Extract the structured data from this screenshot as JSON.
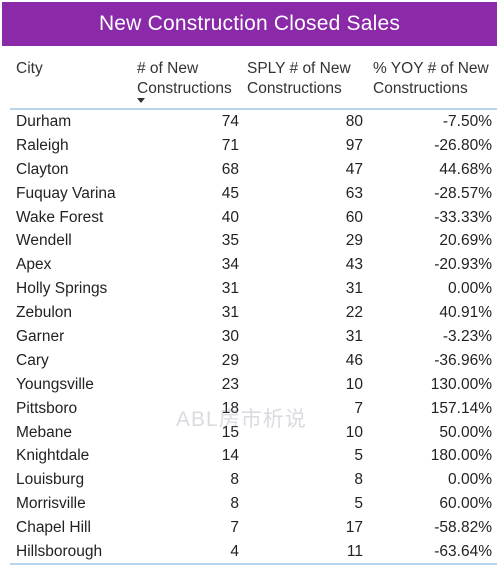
{
  "title": "New Construction Closed Sales",
  "watermark": "ABL房市析说",
  "columns": {
    "city": "City",
    "new": "# of New Constructions",
    "sply": "SPLY # of New Constructions",
    "yoy": "% YOY # of New Constructions"
  },
  "chart_data": {
    "type": "table",
    "title": "New Construction Closed Sales",
    "columns": [
      "City",
      "# of New Constructions",
      "SPLY # of New Constructions",
      "% YOY # of New Constructions"
    ],
    "sorted_by": "# of New Constructions",
    "sort_direction": "descending",
    "rows": [
      {
        "city": "Durham",
        "new": "74",
        "sply": "80",
        "yoy": "-7.50%"
      },
      {
        "city": "Raleigh",
        "new": "71",
        "sply": "97",
        "yoy": "-26.80%"
      },
      {
        "city": "Clayton",
        "new": "68",
        "sply": "47",
        "yoy": "44.68%"
      },
      {
        "city": "Fuquay Varina",
        "new": "45",
        "sply": "63",
        "yoy": "-28.57%"
      },
      {
        "city": "Wake Forest",
        "new": "40",
        "sply": "60",
        "yoy": "-33.33%"
      },
      {
        "city": "Wendell",
        "new": "35",
        "sply": "29",
        "yoy": "20.69%"
      },
      {
        "city": "Apex",
        "new": "34",
        "sply": "43",
        "yoy": "-20.93%"
      },
      {
        "city": "Holly Springs",
        "new": "31",
        "sply": "31",
        "yoy": "0.00%"
      },
      {
        "city": "Zebulon",
        "new": "31",
        "sply": "22",
        "yoy": "40.91%"
      },
      {
        "city": "Garner",
        "new": "30",
        "sply": "31",
        "yoy": "-3.23%"
      },
      {
        "city": "Cary",
        "new": "29",
        "sply": "46",
        "yoy": "-36.96%"
      },
      {
        "city": "Youngsville",
        "new": "23",
        "sply": "10",
        "yoy": "130.00%"
      },
      {
        "city": "Pittsboro",
        "new": "18",
        "sply": "7",
        "yoy": "157.14%"
      },
      {
        "city": "Mebane",
        "new": "15",
        "sply": "10",
        "yoy": "50.00%"
      },
      {
        "city": "Knightdale",
        "new": "14",
        "sply": "5",
        "yoy": "180.00%"
      },
      {
        "city": "Louisburg",
        "new": "8",
        "sply": "8",
        "yoy": "0.00%"
      },
      {
        "city": "Morrisville",
        "new": "8",
        "sply": "5",
        "yoy": "60.00%"
      },
      {
        "city": "Chapel Hill",
        "new": "7",
        "sply": "17",
        "yoy": "-58.82%"
      },
      {
        "city": "Hillsborough",
        "new": "4",
        "sply": "11",
        "yoy": "-63.64%"
      }
    ]
  }
}
